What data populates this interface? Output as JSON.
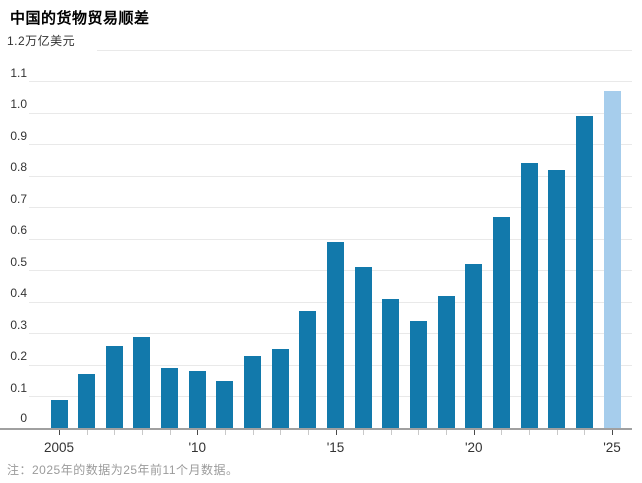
{
  "header": {
    "title": "中国的货物贸易顺差"
  },
  "footer": {
    "note": "注：2025年的数据为25年前11个月数据。"
  },
  "colors": {
    "bar": "#1279ab",
    "bar_partial": "#a6cdec",
    "gridline": "#e9e9e9",
    "baseline": "#a0a0a0",
    "axis_text": "#333333",
    "major_tick": "#4a4a4a",
    "minor_tick": "#c9c9c9",
    "note_text": "#9b9b9b",
    "title_text": "#000000"
  },
  "chart_data": {
    "type": "bar",
    "title": "中国的货物贸易顺差",
    "unit_label": "万亿美元",
    "categories": [
      2005,
      2006,
      2007,
      2008,
      2009,
      2010,
      2011,
      2012,
      2013,
      2014,
      2015,
      2016,
      2017,
      2018,
      2019,
      2020,
      2021,
      2022,
      2023,
      2024,
      2025
    ],
    "values": [
      0.09,
      0.17,
      0.26,
      0.29,
      0.19,
      0.18,
      0.15,
      0.23,
      0.25,
      0.37,
      0.59,
      0.51,
      0.41,
      0.34,
      0.42,
      0.52,
      0.67,
      0.84,
      0.82,
      0.99,
      1.07
    ],
    "highlight_last_bar": true,
    "highlight_note": "2025为前11个月数据（浅色柱）",
    "ylim": [
      0,
      1.2
    ],
    "ytick_step": 0.1,
    "ytick_labels": [
      "0",
      "0.1",
      "0.2",
      "0.3",
      "0.4",
      "0.5",
      "0.6",
      "0.7",
      "0.8",
      "0.9",
      "1.0",
      "1.1",
      "1.2"
    ],
    "x_major_ticks": [
      {
        "year": 2005,
        "label": "2005"
      },
      {
        "year": 2010,
        "label": "'10"
      },
      {
        "year": 2015,
        "label": "'15"
      },
      {
        "year": 2020,
        "label": "'20"
      },
      {
        "year": 2025,
        "label": "'25"
      }
    ],
    "grid": true,
    "legend_position": "none",
    "xlabel": "",
    "ylabel": "万亿美元"
  }
}
